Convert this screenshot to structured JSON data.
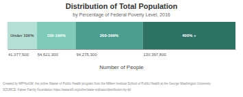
{
  "chart_data": {
    "type": "bar",
    "orientation": "horizontal",
    "stacked": true,
    "title": "Distribution of Total Population",
    "subtitle": "by Percentage of Federal Poverty Level, 2016",
    "xlabel": "Number of People",
    "categories": [
      null
    ],
    "series": [
      {
        "name": "Under 100%",
        "color": "#b2e0d5",
        "values": [
          41077500
        ],
        "value_labels": [
          "41,077,500"
        ]
      },
      {
        "name": "100-199%",
        "color": "#7dcbb8",
        "values": [
          54621300
        ],
        "value_labels": [
          "54,621,300"
        ]
      },
      {
        "name": "200-399%",
        "color": "#4a9e8e",
        "values": [
          94275300
        ],
        "value_labels": [
          "94,275,300"
        ]
      },
      {
        "name": "400% +",
        "color": "#2e7265",
        "values": [
          130397800
        ],
        "value_labels": [
          "130,397,800"
        ]
      }
    ],
    "xlim": [
      0,
      320371900
    ],
    "data_labels": true,
    "tick_labels": false,
    "annotations": [
      "Created by MPHtoGW, the online Master of Public Health program from the Milken Institute School of Public Health at the George Washington University",
      "SOURCE: Kaiser Family Foundation https://www.kff.org/other/state-indicator/distribution-by-fpl"
    ]
  }
}
